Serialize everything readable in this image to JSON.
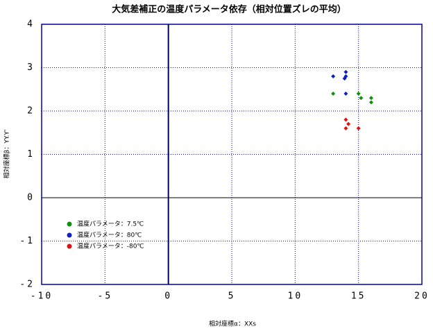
{
  "chart_data": {
    "type": "scatter",
    "title": "大気差補正の温度パラメータ依存（相対位置ズレの平均）",
    "x_label": "相対座標α：XXs",
    "y_label": "相対座標β：YY.Y'",
    "xlim": [
      -10,
      20
    ],
    "xticks": [
      -10,
      -5,
      0,
      5,
      10,
      15,
      20
    ],
    "ylim": [
      -2,
      4
    ],
    "yticks": [
      -2,
      -1,
      0,
      1,
      2,
      3,
      4
    ],
    "grid": true,
    "legend": "lower left",
    "series": [
      {
        "name": "温度パラメータ：7.5℃",
        "color": "#109010",
        "x": [
          13,
          15,
          16,
          16,
          15.2
        ],
        "values": [
          2.4,
          2.4,
          2.3,
          2.2,
          2.3
        ]
      },
      {
        "name": "温度パラメータ：80℃",
        "color": "#1020c0",
        "x": [
          13,
          14,
          14,
          13.9,
          14
        ],
        "values": [
          2.8,
          2.9,
          2.8,
          2.75,
          2.4
        ]
      },
      {
        "name": "温度パラメータ：-80℃",
        "color": "#e01010",
        "x": [
          14,
          14,
          15,
          14.2
        ],
        "values": [
          1.8,
          1.6,
          1.6,
          1.7
        ]
      }
    ]
  }
}
